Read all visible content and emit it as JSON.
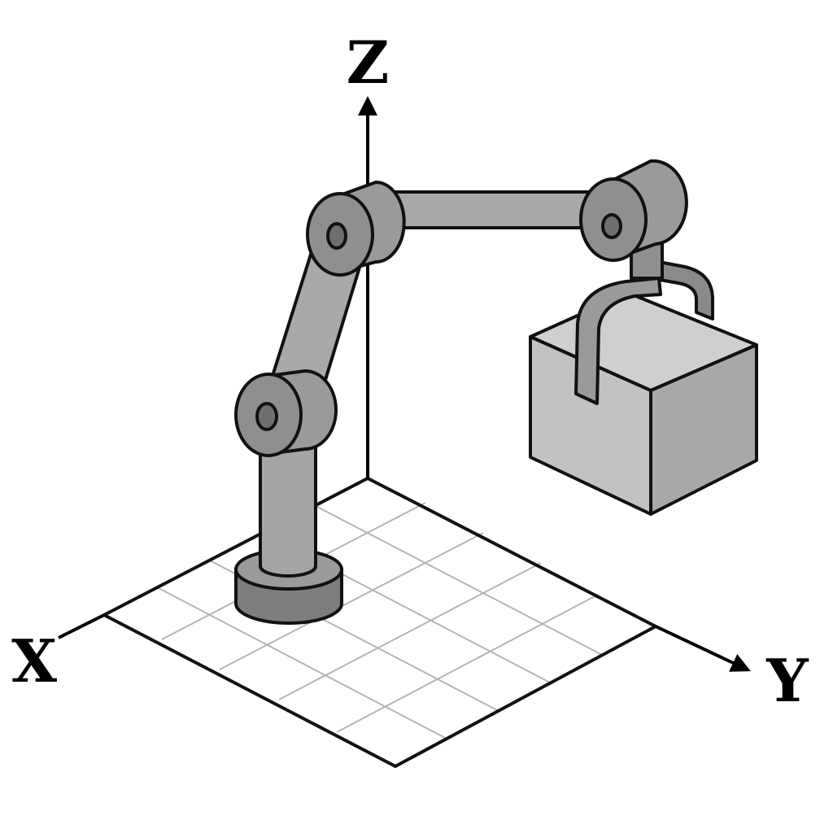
{
  "axes": {
    "x_label": "X",
    "y_label": "Y",
    "z_label": "Z"
  },
  "colors": {
    "outline": "#111111",
    "arm_light": "#a9a9a9",
    "arm_mid": "#9a9a9a",
    "arm_dark": "#7d7d7d",
    "joint_face": "#8f8f8f",
    "box_top": "#cfcfcf",
    "box_left": "#c2c2c2",
    "box_right": "#a8a8a8",
    "grid_line": "#b5b5b5",
    "floor": "#ffffff"
  }
}
